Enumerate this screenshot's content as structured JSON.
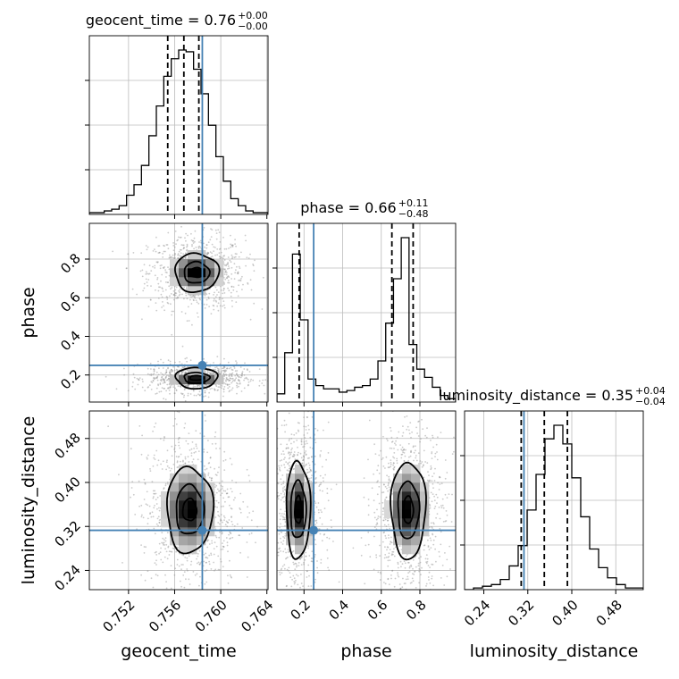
{
  "chart_data": {
    "type": "corner",
    "parameters": [
      "geocent_time",
      "phase",
      "luminosity_distance"
    ],
    "truths": {
      "geocent_time": 0.7584,
      "phase": 0.25,
      "luminosity_distance": 0.313
    },
    "ranges": {
      "geocent_time": [
        0.7486,
        0.7641
      ],
      "phase": [
        0.06,
        0.985
      ],
      "luminosity_distance": [
        0.205,
        0.53
      ]
    },
    "titles": [
      {
        "param": "geocent_time",
        "text": "geocent_time = 0.76",
        "sup": "+0.00",
        "sub": "−0.00"
      },
      {
        "param": "phase",
        "text": "phase = 0.66",
        "sup": "+0.11",
        "sub": "−0.48"
      },
      {
        "param": "luminosity_distance",
        "text": "luminosity_distance = 0.35",
        "sup": "+0.04",
        "sub": "−0.04"
      }
    ],
    "quantiles": {
      "geocent_time": [
        0.7554,
        0.7568,
        0.7581
      ],
      "phase": [
        0.175,
        0.655,
        0.765
      ],
      "luminosity_distance": [
        0.308,
        0.35,
        0.392
      ]
    },
    "hist1d": {
      "geocent_time": {
        "edges_range": [
          0.7486,
          0.7641
        ],
        "counts": [
          1,
          1,
          2,
          3,
          5,
          11,
          17,
          28,
          45,
          62,
          79,
          89,
          94,
          93,
          83,
          69,
          51,
          33,
          19,
          9,
          5,
          2,
          1,
          1
        ]
      },
      "phase": {
        "edges_range": [
          0.06,
          0.985
        ],
        "counts": [
          5,
          30,
          90,
          50,
          14,
          10,
          8,
          8,
          6,
          7,
          9,
          10,
          14,
          25,
          48,
          75,
          100,
          35,
          20,
          15,
          9,
          4,
          2
        ]
      },
      "luminosity_distance": {
        "edges_range": [
          0.205,
          0.53
        ],
        "counts": [
          0,
          1,
          2,
          3,
          6,
          14,
          26,
          47,
          68,
          89,
          97,
          86,
          66,
          43,
          24,
          13,
          7,
          3,
          1,
          1
        ]
      }
    },
    "hist2d_blobs": {
      "phase_vs_geocent_time": [
        {
          "x": 0.7579,
          "y": 0.73,
          "sx": 0.0011,
          "sy": 0.05,
          "w": 1
        },
        {
          "x": 0.7579,
          "y": 0.185,
          "sx": 0.0011,
          "sy": 0.02,
          "w": 1
        }
      ],
      "luminosity_distance_vs_geocent_time": [
        {
          "x": 0.7573,
          "y": 0.35,
          "sx": 0.0011,
          "sy": 0.038,
          "w": 1
        }
      ],
      "luminosity_distance_vs_phase": [
        {
          "x": 0.17,
          "y": 0.35,
          "sx": 0.035,
          "sy": 0.04,
          "w": 1
        },
        {
          "x": 0.74,
          "y": 0.35,
          "sx": 0.05,
          "sy": 0.04,
          "w": 1
        }
      ]
    },
    "contours": {
      "phase_vs_geocent_time": [
        {
          "cx": 0.7579,
          "cy": 0.73,
          "rx": [
            0.0006,
            0.0011,
            0.0019
          ],
          "ry": [
            0.025,
            0.055,
            0.1
          ]
        },
        {
          "cx": 0.7579,
          "cy": 0.185,
          "rx": [
            0.0006,
            0.0011,
            0.0018
          ],
          "ry": [
            0.012,
            0.028,
            0.055
          ]
        }
      ],
      "luminosity_distance_vs_geocent_time": [
        {
          "cx": 0.7573,
          "cy": 0.35,
          "rx": [
            0.0006,
            0.0012,
            0.002
          ],
          "ry": [
            0.02,
            0.045,
            0.078
          ]
        }
      ],
      "luminosity_distance_vs_phase": [
        {
          "cx": 0.17,
          "cy": 0.35,
          "rx": [
            0.018,
            0.04,
            0.062
          ],
          "ry": [
            0.025,
            0.052,
            0.088
          ]
        },
        {
          "cx": 0.74,
          "cy": 0.35,
          "rx": [
            0.025,
            0.055,
            0.09
          ],
          "ry": [
            0.025,
            0.052,
            0.088
          ]
        }
      ]
    },
    "ticks": {
      "geocent_time": {
        "values": [
          0.752,
          0.756,
          0.76,
          0.764
        ],
        "labels": [
          "0.752",
          "0.756",
          "0.760",
          "0.764"
        ]
      },
      "phase": {
        "values": [
          0.2,
          0.4,
          0.6,
          0.8
        ],
        "labels": [
          "0.2",
          "0.4",
          "0.6",
          "0.8"
        ]
      },
      "luminosity_distance": {
        "values": [
          0.24,
          0.32,
          0.4,
          0.48
        ],
        "labels": [
          "0.24",
          "0.32",
          "0.40",
          "0.48"
        ]
      }
    },
    "axis_labels": {
      "x": [
        "geocent_time",
        "phase",
        "luminosity_distance"
      ],
      "y": [
        "phase",
        "luminosity_distance"
      ]
    },
    "grid": true,
    "colors": {
      "truth": "#4682b4",
      "hist": "#000000",
      "grid": "#bbbbbb",
      "points": "#8c8c8c"
    }
  }
}
